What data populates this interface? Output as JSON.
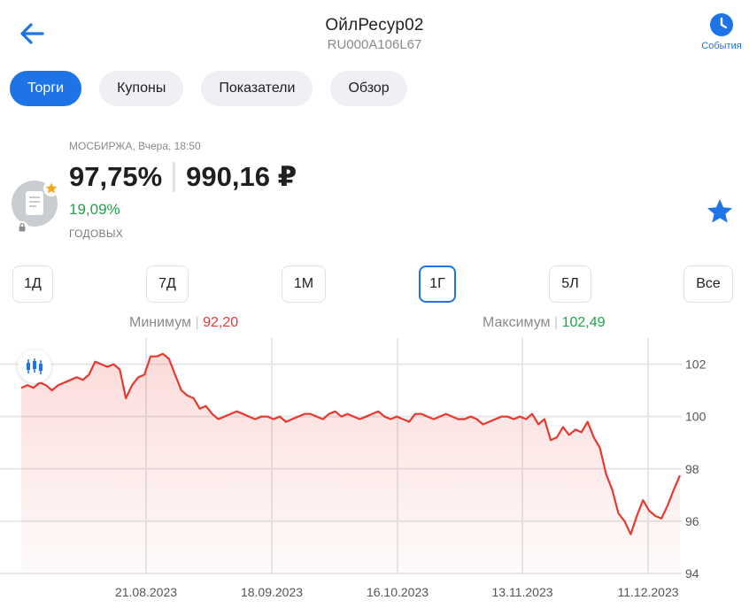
{
  "header": {
    "title": "ОйлРесур02",
    "isin": "RU000A106L67",
    "events_label": "События"
  },
  "tabs": [
    {
      "label": "Торги",
      "active": true
    },
    {
      "label": "Купоны",
      "active": false
    },
    {
      "label": "Показатели",
      "active": false
    },
    {
      "label": "Обзор",
      "active": false
    }
  ],
  "quote": {
    "exchange": "МОСБИРЖА, Вчера, 18:50",
    "price_pct": "97,75%",
    "price_rub": "990,16 ₽",
    "yield": "19,09%",
    "yield_label": "ГОДОВЫХ"
  },
  "periods": [
    {
      "label": "1Д",
      "active": false
    },
    {
      "label": "7Д",
      "active": false
    },
    {
      "label": "1М",
      "active": false
    },
    {
      "label": "1Г",
      "active": true
    },
    {
      "label": "5Л",
      "active": false
    },
    {
      "label": "Все",
      "active": false
    }
  ],
  "range": {
    "min_label": "Минимум",
    "min_value": "92,20",
    "max_label": "Максимум",
    "max_value": "102,49"
  },
  "colors": {
    "accent": "#1e74e6",
    "line": "#e8392f",
    "positive": "#1fa24a",
    "negative": "#e53935"
  },
  "chart_data": {
    "type": "area",
    "x_tick_labels": [
      "21.08.2023",
      "18.09.2023",
      "16.10.2023",
      "13.11.2023",
      "11.12.2023"
    ],
    "y_ticks": [
      94,
      96,
      98,
      100,
      102
    ],
    "ylim": [
      94,
      103
    ],
    "series": [
      {
        "values": [
          101.1,
          101.2,
          101.1,
          101.3,
          101.2,
          101.0,
          101.2,
          101.3,
          101.4,
          101.5,
          101.4,
          101.6,
          102.1,
          102.0,
          101.9,
          102.0,
          101.8,
          100.7,
          101.2,
          101.5,
          101.6,
          102.3,
          102.3,
          102.4,
          102.2,
          101.6,
          101.0,
          100.8,
          100.7,
          100.3,
          100.4,
          100.1,
          99.9,
          100.0,
          100.1,
          100.2,
          100.1,
          100.0,
          99.9,
          100.0,
          100.0,
          99.9,
          100.0,
          99.8,
          99.9,
          100.0,
          100.1,
          100.1,
          100.0,
          99.9,
          100.1,
          100.2,
          100.0,
          100.1,
          100.0,
          99.9,
          100.0,
          100.1,
          100.2,
          100.0,
          99.9,
          100.0,
          99.9,
          99.8,
          100.1,
          100.1,
          100.0,
          99.9,
          100.0,
          100.1,
          100.0,
          99.9,
          99.9,
          100.0,
          99.9,
          99.7,
          99.8,
          99.9,
          100.0,
          100.0,
          99.9,
          100.0,
          99.9,
          100.1,
          99.7,
          99.9,
          99.1,
          99.2,
          99.6,
          99.3,
          99.5,
          99.4,
          99.8,
          99.2,
          98.8,
          97.8,
          97.2,
          96.3,
          96.0,
          95.5,
          96.2,
          96.8,
          96.4,
          96.2,
          96.1,
          96.6,
          97.2,
          97.75
        ]
      }
    ]
  }
}
